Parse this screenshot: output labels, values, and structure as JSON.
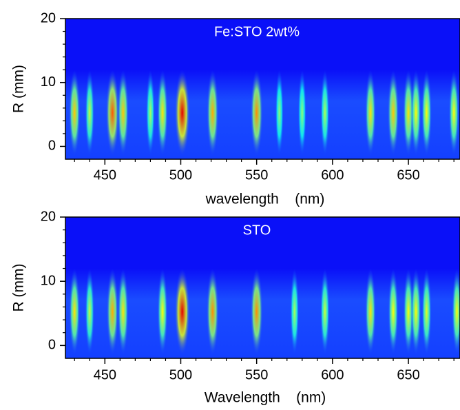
{
  "chart_data": [
    {
      "type": "heatmap",
      "title": "Fe:STO 2wt%",
      "x_label": "wavelength    (nm)",
      "y_label": "R (mm)",
      "xlim": [
        424,
        684
      ],
      "xticks": [
        450,
        500,
        550,
        600,
        650
      ],
      "xticks_minor": [
        430,
        440,
        460,
        470,
        480,
        490,
        510,
        520,
        530,
        540,
        560,
        570,
        580,
        590,
        610,
        620,
        630,
        640,
        660,
        670,
        680
      ],
      "ylim": [
        -2,
        20
      ],
      "yticks": [
        0,
        10,
        20
      ],
      "yticks_minor": [
        2,
        4,
        6,
        8,
        12,
        14,
        16,
        18
      ],
      "x": [
        430,
        440,
        455,
        462,
        480,
        488,
        501,
        521,
        550,
        565,
        580,
        595,
        625,
        640,
        650,
        655,
        662,
        680
      ],
      "values": [
        0.6,
        0.4,
        0.8,
        0.6,
        0.35,
        0.55,
        1.0,
        0.65,
        0.7,
        0.3,
        0.3,
        0.35,
        0.55,
        0.6,
        0.55,
        0.5,
        0.5,
        0.5
      ]
    },
    {
      "type": "heatmap",
      "title": "STO",
      "x_label": "Wavelength    (nm)",
      "y_label": "R (mm)",
      "xlim": [
        424,
        684
      ],
      "xticks": [
        450,
        500,
        550,
        600,
        650
      ],
      "xticks_minor": [
        430,
        440,
        460,
        470,
        480,
        490,
        510,
        520,
        530,
        540,
        560,
        570,
        580,
        590,
        610,
        620,
        630,
        640,
        660,
        670,
        680
      ],
      "ylim": [
        -2,
        20
      ],
      "yticks": [
        0,
        10,
        20
      ],
      "yticks_minor": [
        2,
        4,
        6,
        8,
        12,
        14,
        16,
        18
      ],
      "x": [
        430,
        440,
        455,
        462,
        488,
        501,
        521,
        550,
        575,
        595,
        625,
        640,
        650,
        655,
        662,
        682
      ],
      "values": [
        0.55,
        0.4,
        0.65,
        0.55,
        0.5,
        1.0,
        0.7,
        0.7,
        0.35,
        0.4,
        0.55,
        0.5,
        0.5,
        0.5,
        0.45,
        0.5
      ]
    }
  ]
}
